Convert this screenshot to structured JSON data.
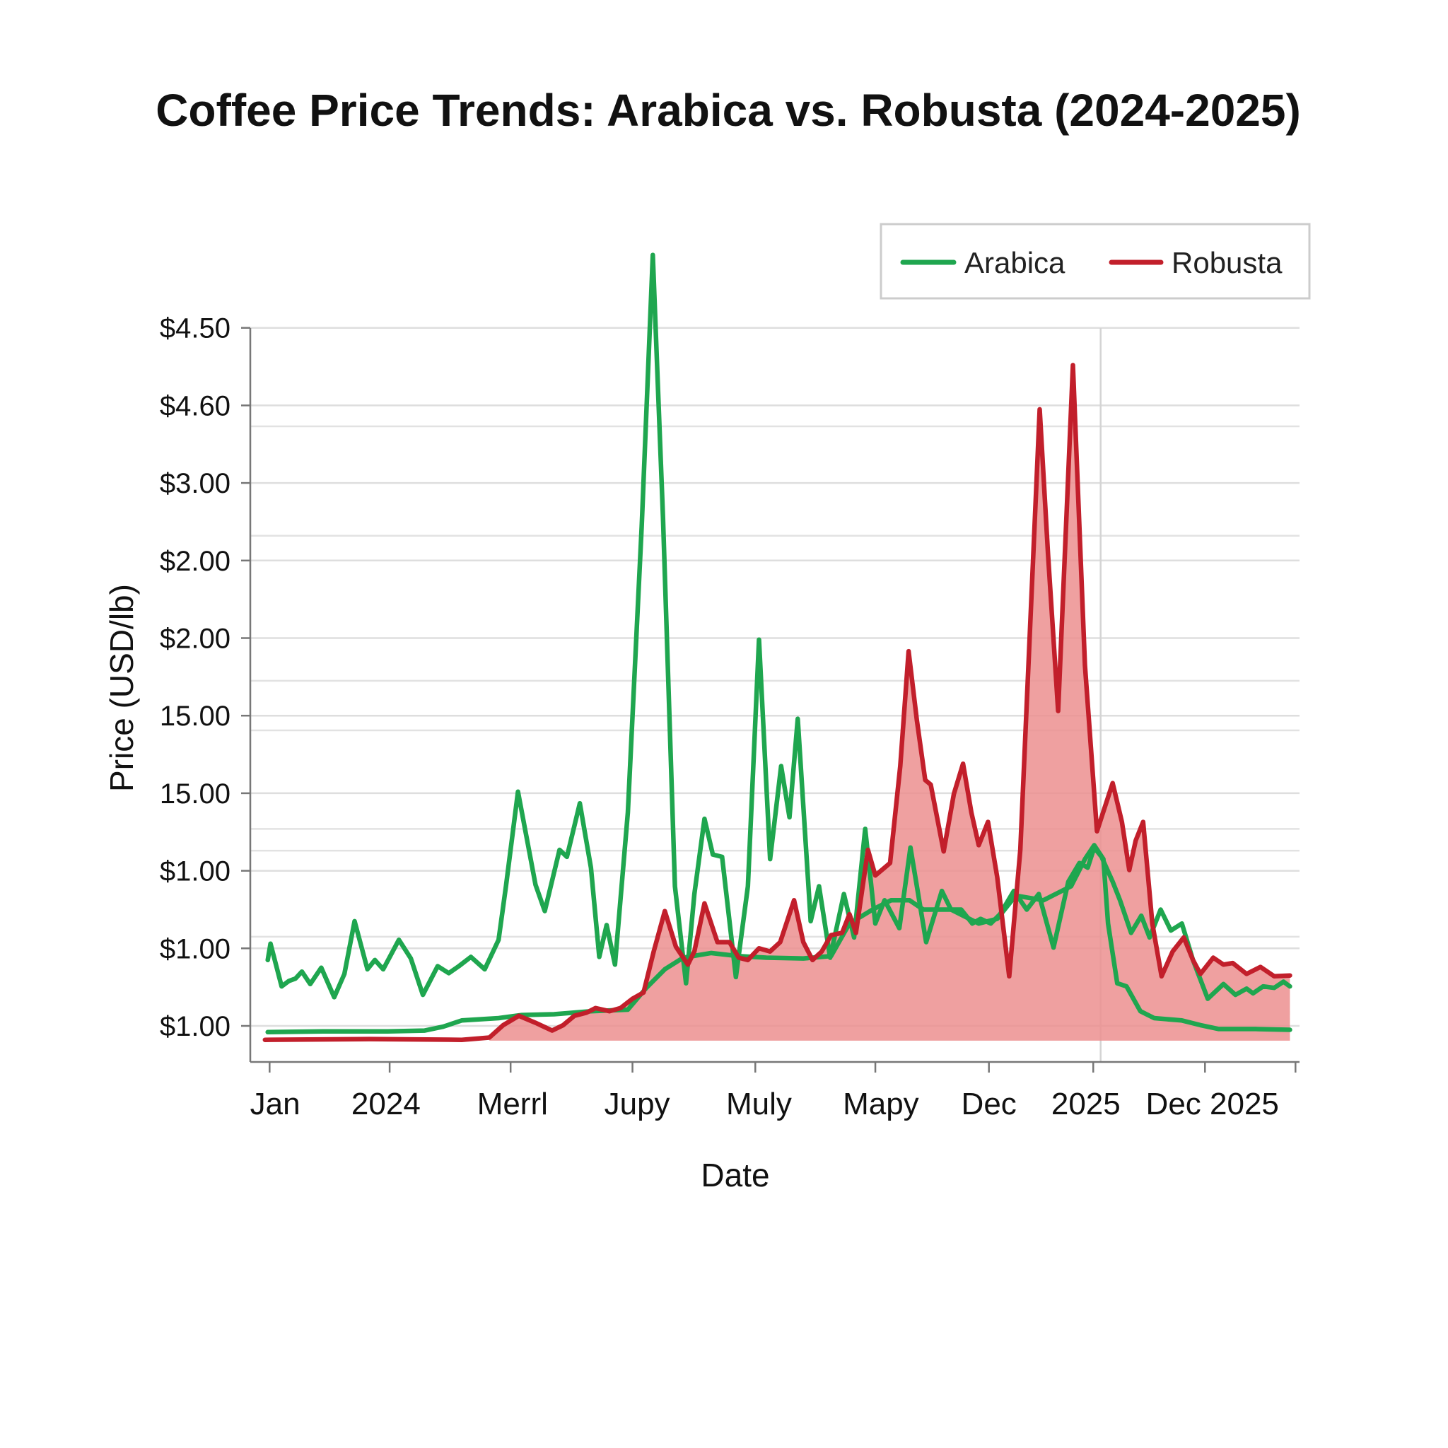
{
  "chart_data": {
    "type": "line",
    "title": "Coffee Price Trends: Arabica vs. Robusta (2024-2025)",
    "xlabel": "Date",
    "ylabel": "Price (USD/lb)",
    "xlim": [
      -1,
      111.5
    ],
    "ylim": [
      -0.46,
      9
    ],
    "grid": true,
    "legend_placement": "top-right",
    "y_ticks": [
      {
        "v": 0,
        "label": "$1.00"
      },
      {
        "v": 1,
        "label": "$1.00"
      },
      {
        "v": 2,
        "label": "$1.00"
      },
      {
        "v": 3,
        "label": "15.00"
      },
      {
        "v": 4,
        "label": "15.00"
      },
      {
        "v": 5,
        "label": "$2.00"
      },
      {
        "v": 6,
        "label": "$2.00"
      },
      {
        "v": 7,
        "label": "$3.00"
      },
      {
        "v": 8,
        "label": "$4.60"
      },
      {
        "v": 9,
        "label": "$4.50"
      }
    ],
    "extra_gridlines": [
      7.73,
      6.32,
      4.45,
      3.81,
      2.54,
      2.26,
      1.15
    ],
    "vertical_marker": 90.2,
    "x_ticks": [
      0.2,
      13.2,
      26.3,
      39.5,
      52.8,
      65.8,
      78.1,
      89.4,
      101.5,
      111.3
    ],
    "x_tick_labels": [
      {
        "v": 0.8,
        "label": "Jan"
      },
      {
        "v": 12.8,
        "label": "2024"
      },
      {
        "v": 26.5,
        "label": "Merrl"
      },
      {
        "v": 40,
        "label": "Jupy"
      },
      {
        "v": 53.2,
        "label": "Muly"
      },
      {
        "v": 66.4,
        "label": "Mapy"
      },
      {
        "v": 78.1,
        "label": "Dec"
      },
      {
        "v": 88.6,
        "label": "2025"
      },
      {
        "v": 102.3,
        "label": "Dec 2025"
      }
    ],
    "series": [
      {
        "name": "Arabica",
        "color": "#1fa64f",
        "legend": true,
        "points": [
          [
            0,
            0.85
          ],
          [
            0.3,
            1.06
          ],
          [
            1.5,
            0.51
          ],
          [
            2.3,
            0.58
          ],
          [
            3,
            0.61
          ],
          [
            3.7,
            0.7
          ],
          [
            4.6,
            0.54
          ],
          [
            5.8,
            0.75
          ],
          [
            7.2,
            0.37
          ],
          [
            8.3,
            0.67
          ],
          [
            9.4,
            1.35
          ],
          [
            10.8,
            0.73
          ],
          [
            11.6,
            0.85
          ],
          [
            12.5,
            0.73
          ],
          [
            14.2,
            1.11
          ],
          [
            15.5,
            0.87
          ],
          [
            16.8,
            0.4
          ],
          [
            18.4,
            0.77
          ],
          [
            19.6,
            0.68
          ],
          [
            20.7,
            0.77
          ],
          [
            22,
            0.89
          ],
          [
            23.5,
            0.73
          ],
          [
            25,
            1.11
          ],
          [
            25.8,
            1.8
          ],
          [
            27.1,
            3.02
          ],
          [
            28,
            2.45
          ],
          [
            29,
            1.82
          ],
          [
            30,
            1.48
          ],
          [
            31.6,
            2.27
          ],
          [
            32.4,
            2.18
          ],
          [
            33.8,
            2.87
          ],
          [
            35,
            2.04
          ],
          [
            35.9,
            0.89
          ],
          [
            36.7,
            1.3
          ],
          [
            37.6,
            0.79
          ],
          [
            39,
            2.75
          ],
          [
            40.5,
            6.44
          ],
          [
            41.7,
            9.94
          ],
          [
            42.8,
            6.56
          ],
          [
            44.1,
            1.8
          ],
          [
            45.3,
            0.55
          ],
          [
            46.2,
            1.7
          ],
          [
            47.3,
            2.67
          ],
          [
            48.2,
            2.21
          ],
          [
            49.2,
            2.18
          ],
          [
            50.7,
            0.63
          ],
          [
            52,
            1.8
          ],
          [
            53.2,
            4.98
          ],
          [
            54.4,
            2.15
          ],
          [
            55.6,
            3.35
          ],
          [
            56.5,
            2.69
          ],
          [
            57.4,
            3.96
          ],
          [
            58.8,
            1.35
          ],
          [
            59.7,
            1.8
          ],
          [
            60.9,
            0.88
          ],
          [
            62.4,
            1.7
          ],
          [
            63.5,
            1.14
          ],
          [
            64.7,
            2.54
          ],
          [
            65.8,
            1.32
          ],
          [
            66.8,
            1.62
          ],
          [
            68.4,
            1.26
          ],
          [
            69.6,
            2.3
          ],
          [
            71.3,
            1.08
          ],
          [
            73,
            1.74
          ],
          [
            74,
            1.5
          ],
          [
            75.1,
            1.5
          ],
          [
            76.3,
            1.32
          ],
          [
            77.2,
            1.38
          ],
          [
            78.3,
            1.32
          ],
          [
            79.3,
            1.44
          ],
          [
            80.8,
            1.74
          ],
          [
            82.2,
            1.5
          ],
          [
            83.5,
            1.7
          ],
          [
            85.1,
            1.01
          ],
          [
            86.7,
            1.86
          ],
          [
            87.9,
            2.1
          ],
          [
            88.8,
            2.04
          ],
          [
            89.5,
            2.3
          ],
          [
            90.3,
            2.18
          ],
          [
            91.5,
            1.86
          ],
          [
            92.3,
            1.62
          ],
          [
            93.5,
            1.2
          ],
          [
            94.6,
            1.42
          ],
          [
            95.5,
            1.14
          ],
          [
            96.7,
            1.5
          ],
          [
            97.8,
            1.23
          ],
          [
            99,
            1.32
          ],
          [
            100.2,
            0.85
          ],
          [
            101.8,
            0.35
          ],
          [
            103.5,
            0.54
          ],
          [
            104.8,
            0.4
          ],
          [
            106,
            0.48
          ],
          [
            106.7,
            0.42
          ],
          [
            107.8,
            0.51
          ],
          [
            109,
            0.49
          ],
          [
            110,
            0.57
          ],
          [
            110.7,
            0.51
          ]
        ]
      },
      {
        "name": "Arabica baseline",
        "color": "#1fa64f",
        "legend": false,
        "points": [
          [
            0,
            -0.08
          ],
          [
            6,
            -0.07
          ],
          [
            13,
            -0.07
          ],
          [
            17,
            -0.06
          ],
          [
            19,
            -0.01
          ],
          [
            21,
            0.07
          ],
          [
            25,
            0.1
          ],
          [
            27.5,
            0.14
          ],
          [
            31,
            0.15
          ],
          [
            35,
            0.19
          ],
          [
            39,
            0.21
          ],
          [
            41,
            0.49
          ],
          [
            43,
            0.73
          ],
          [
            45,
            0.88
          ],
          [
            48,
            0.94
          ],
          [
            51,
            0.9
          ],
          [
            54,
            0.88
          ],
          [
            58,
            0.87
          ],
          [
            61,
            0.9
          ],
          [
            63,
            1.32
          ],
          [
            65.5,
            1.5
          ],
          [
            67.5,
            1.62
          ],
          [
            69.5,
            1.62
          ],
          [
            71,
            1.5
          ],
          [
            74,
            1.5
          ],
          [
            77,
            1.32
          ],
          [
            79,
            1.38
          ],
          [
            81,
            1.68
          ],
          [
            84,
            1.62
          ],
          [
            87,
            1.8
          ],
          [
            88.5,
            2.15
          ],
          [
            89.5,
            2.33
          ],
          [
            90.5,
            2.15
          ],
          [
            91,
            1.32
          ],
          [
            92,
            0.55
          ],
          [
            93,
            0.51
          ],
          [
            94.5,
            0.19
          ],
          [
            96,
            0.1
          ],
          [
            99,
            0.07
          ],
          [
            101,
            0.01
          ],
          [
            103,
            -0.04
          ],
          [
            107,
            -0.04
          ],
          [
            110.7,
            -0.05
          ]
        ]
      },
      {
        "name": "Robusta",
        "color": "#c21f2b",
        "legend": true,
        "fill": "#ec8f8f",
        "points": [
          [
            -0.3,
            -0.18
          ],
          [
            11,
            -0.17
          ],
          [
            21,
            -0.18
          ],
          [
            24,
            -0.15
          ],
          [
            25.5,
            0.01
          ],
          [
            27.2,
            0.13
          ],
          [
            29,
            0.04
          ],
          [
            30.8,
            -0.06
          ],
          [
            32,
            0.01
          ],
          [
            33.2,
            0.13
          ],
          [
            34.5,
            0.17
          ],
          [
            35.5,
            0.23
          ],
          [
            37,
            0.19
          ],
          [
            38.2,
            0.23
          ],
          [
            39.5,
            0.35
          ],
          [
            40.7,
            0.43
          ],
          [
            41.8,
            0.96
          ],
          [
            43,
            1.48
          ],
          [
            44.2,
            1.02
          ],
          [
            45.5,
            0.79
          ],
          [
            46.2,
            0.96
          ],
          [
            47.3,
            1.58
          ],
          [
            48.7,
            1.08
          ],
          [
            50,
            1.08
          ],
          [
            51,
            0.88
          ],
          [
            52,
            0.85
          ],
          [
            53.2,
            1
          ],
          [
            54.4,
            0.96
          ],
          [
            55.5,
            1.08
          ],
          [
            57,
            1.62
          ],
          [
            58,
            1.08
          ],
          [
            59,
            0.85
          ],
          [
            60,
            0.96
          ],
          [
            61,
            1.17
          ],
          [
            62.2,
            1.2
          ],
          [
            63,
            1.44
          ],
          [
            63.7,
            1.2
          ],
          [
            65,
            2.27
          ],
          [
            65.8,
            1.94
          ],
          [
            66.8,
            2.04
          ],
          [
            67.4,
            2.1
          ],
          [
            68.5,
            3.35
          ],
          [
            69.4,
            4.83
          ],
          [
            70.3,
            3.94
          ],
          [
            71.2,
            3.17
          ],
          [
            71.8,
            3.11
          ],
          [
            73.2,
            2.25
          ],
          [
            74.3,
            2.99
          ],
          [
            75.3,
            3.38
          ],
          [
            76.2,
            2.75
          ],
          [
            77,
            2.33
          ],
          [
            78,
            2.63
          ],
          [
            79,
            1.92
          ],
          [
            80.3,
            0.64
          ],
          [
            81.5,
            2.27
          ],
          [
            83.6,
            7.95
          ],
          [
            84.5,
            6.08
          ],
          [
            85.6,
            4.06
          ],
          [
            87.2,
            8.52
          ],
          [
            88.5,
            4.65
          ],
          [
            89.8,
            2.51
          ],
          [
            91.5,
            3.13
          ],
          [
            92.5,
            2.63
          ],
          [
            93.3,
            2.01
          ],
          [
            94,
            2.39
          ],
          [
            94.8,
            2.63
          ],
          [
            95.8,
            1.32
          ],
          [
            96.8,
            0.64
          ],
          [
            98,
            0.96
          ],
          [
            99.2,
            1.14
          ],
          [
            100.2,
            0.85
          ],
          [
            101,
            0.67
          ],
          [
            102.4,
            0.88
          ],
          [
            103.5,
            0.79
          ],
          [
            104.5,
            0.81
          ],
          [
            106,
            0.67
          ],
          [
            107.5,
            0.76
          ],
          [
            109,
            0.64
          ],
          [
            110.7,
            0.65
          ]
        ]
      }
    ],
    "fill_baseline": -0.19
  }
}
